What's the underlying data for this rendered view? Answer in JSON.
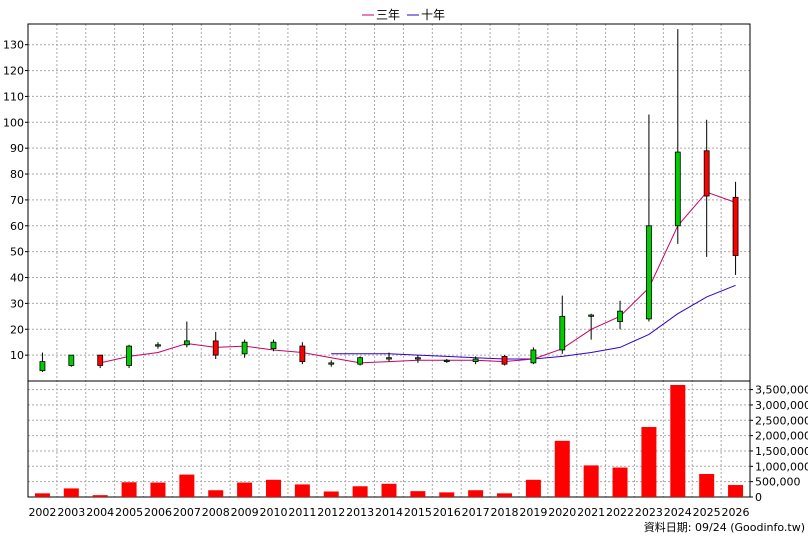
{
  "chart_data": {
    "type": "candlestick-with-volume",
    "legend": [
      {
        "name": "三年",
        "color": "#cc0066"
      },
      {
        "name": "十年",
        "color": "#3300cc"
      }
    ],
    "footer": "資料日期: 09/24  (Goodinfo.tw)",
    "years": [
      "2002",
      "2003",
      "2004",
      "2005",
      "2006",
      "2007",
      "2008",
      "2009",
      "2010",
      "2011",
      "2012",
      "2013",
      "2014",
      "2015",
      "2016",
      "2017",
      "2018",
      "2019",
      "2020",
      "2021",
      "2022",
      "2023",
      "2024",
      "2025",
      "2026"
    ],
    "price_axis": {
      "min": 0,
      "max": 138,
      "ticks": [
        10,
        20,
        30,
        40,
        50,
        60,
        70,
        80,
        90,
        100,
        110,
        120,
        130
      ]
    },
    "volume_axis": {
      "min": 0,
      "max": 3780000,
      "ticks": [
        0,
        500000,
        1000000,
        1500000,
        2000000,
        2500000,
        3000000,
        3500000
      ],
      "tick_labels": [
        "0",
        "500,000",
        "1,000,000",
        "1,500,000",
        "2,000,000",
        "2,500,000",
        "3,000,000",
        "3,500,000"
      ]
    },
    "candles": [
      {
        "open": 7.5,
        "close": 4,
        "high": 11,
        "low": 3.5
      },
      {
        "open": 10,
        "close": 6,
        "high": 10,
        "low": 5.5
      },
      {
        "open": 6,
        "close": 10,
        "high": 10,
        "low": 5
      },
      {
        "open": 13.5,
        "close": 6,
        "high": 14,
        "low": 5
      },
      {
        "open": 14,
        "close": 13.5,
        "high": 15,
        "low": 12.5
      },
      {
        "open": 15.5,
        "close": 14,
        "high": 23,
        "low": 13
      },
      {
        "open": 10,
        "close": 15.5,
        "high": 19,
        "low": 8.5
      },
      {
        "open": 15,
        "close": 10.5,
        "high": 16,
        "low": 9
      },
      {
        "open": 15,
        "close": 12.5,
        "high": 16,
        "low": 11.5
      },
      {
        "open": 7.5,
        "close": 13.5,
        "high": 15,
        "low": 6.5
      },
      {
        "open": 7,
        "close": 6.5,
        "high": 8,
        "low": 5.5
      },
      {
        "open": 9,
        "close": 6.5,
        "high": 9.5,
        "low": 6
      },
      {
        "open": 9,
        "close": 8.5,
        "high": 11,
        "low": 7.5
      },
      {
        "open": 9,
        "close": 8.5,
        "high": 10,
        "low": 7
      },
      {
        "open": 8,
        "close": 7.5,
        "high": 8.5,
        "low": 7
      },
      {
        "open": 8.5,
        "close": 7.5,
        "high": 9.5,
        "low": 6.5
      },
      {
        "open": 6.5,
        "close": 9.5,
        "high": 10,
        "low": 6
      },
      {
        "open": 12,
        "close": 7,
        "high": 13,
        "low": 6.5
      },
      {
        "open": 25,
        "close": 12,
        "high": 33,
        "low": 10.5
      },
      {
        "open": 25.5,
        "close": 25,
        "high": 26,
        "low": 16
      },
      {
        "open": 27,
        "close": 23,
        "high": 31,
        "low": 20
      },
      {
        "open": 60,
        "close": 24,
        "high": 103,
        "low": 23
      },
      {
        "open": 88.5,
        "close": 60,
        "high": 136,
        "low": 53
      },
      {
        "open": 71.5,
        "close": 89,
        "high": 101,
        "low": 48
      },
      {
        "open": 48.5,
        "close": 71,
        "high": 77,
        "low": 41
      }
    ],
    "ma_3y": [
      null,
      null,
      7,
      9.5,
      11,
      14.5,
      13,
      13.5,
      12,
      11,
      9,
      7,
      7.5,
      8,
      8,
      8,
      7.5,
      8.5,
      12.5,
      20,
      25,
      36,
      60,
      73,
      69
    ],
    "ma_10y": [
      null,
      null,
      null,
      null,
      null,
      null,
      null,
      null,
      null,
      null,
      10.5,
      10.5,
      10.5,
      10,
      9.5,
      9,
      8.5,
      8.5,
      9.5,
      11,
      13,
      18,
      26,
      32.5,
      37
    ],
    "volumes": [
      120000,
      280000,
      60000,
      480000,
      470000,
      730000,
      220000,
      470000,
      560000,
      410000,
      180000,
      350000,
      430000,
      190000,
      150000,
      220000,
      120000,
      560000,
      1830000,
      1030000,
      960000,
      2280000,
      3650000,
      750000,
      390000
    ]
  }
}
